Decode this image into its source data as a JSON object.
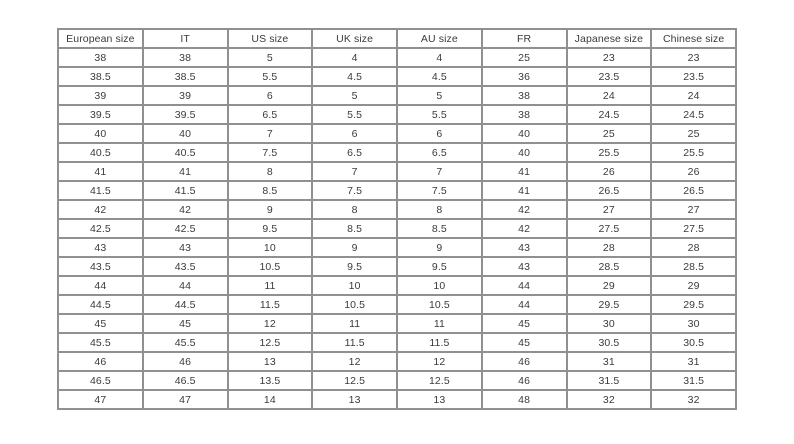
{
  "chart_data": {
    "type": "table",
    "title": "",
    "columns": [
      "European size",
      "IT",
      "US size",
      "UK size",
      "AU size",
      "FR",
      "Japanese size",
      "Chinese size"
    ],
    "rows": [
      [
        "38",
        "38",
        "5",
        "4",
        "4",
        "25",
        "23",
        "23"
      ],
      [
        "38.5",
        "38.5",
        "5.5",
        "4.5",
        "4.5",
        "36",
        "23.5",
        "23.5"
      ],
      [
        "39",
        "39",
        "6",
        "5",
        "5",
        "38",
        "24",
        "24"
      ],
      [
        "39.5",
        "39.5",
        "6.5",
        "5.5",
        "5.5",
        "38",
        "24.5",
        "24.5"
      ],
      [
        "40",
        "40",
        "7",
        "6",
        "6",
        "40",
        "25",
        "25"
      ],
      [
        "40.5",
        "40.5",
        "7.5",
        "6.5",
        "6.5",
        "40",
        "25.5",
        "25.5"
      ],
      [
        "41",
        "41",
        "8",
        "7",
        "7",
        "41",
        "26",
        "26"
      ],
      [
        "41.5",
        "41.5",
        "8.5",
        "7.5",
        "7.5",
        "41",
        "26.5",
        "26.5"
      ],
      [
        "42",
        "42",
        "9",
        "8",
        "8",
        "42",
        "27",
        "27"
      ],
      [
        "42.5",
        "42.5",
        "9.5",
        "8.5",
        "8.5",
        "42",
        "27.5",
        "27.5"
      ],
      [
        "43",
        "43",
        "10",
        "9",
        "9",
        "43",
        "28",
        "28"
      ],
      [
        "43.5",
        "43.5",
        "10.5",
        "9.5",
        "9.5",
        "43",
        "28.5",
        "28.5"
      ],
      [
        "44",
        "44",
        "11",
        "10",
        "10",
        "44",
        "29",
        "29"
      ],
      [
        "44.5",
        "44.5",
        "11.5",
        "10.5",
        "10.5",
        "44",
        "29.5",
        "29.5"
      ],
      [
        "45",
        "45",
        "12",
        "11",
        "11",
        "45",
        "30",
        "30"
      ],
      [
        "45.5",
        "45.5",
        "12.5",
        "11.5",
        "11.5",
        "45",
        "30.5",
        "30.5"
      ],
      [
        "46",
        "46",
        "13",
        "12",
        "12",
        "46",
        "31",
        "31"
      ],
      [
        "46.5",
        "46.5",
        "13.5",
        "12.5",
        "12.5",
        "46",
        "31.5",
        "31.5"
      ],
      [
        "47",
        "47",
        "14",
        "13",
        "13",
        "48",
        "32",
        "32"
      ]
    ],
    "layout": {
      "grid": true,
      "legend": "none"
    }
  },
  "colors": {
    "border": "#909090",
    "text": "#3b3b3b",
    "background": "#ffffff"
  }
}
